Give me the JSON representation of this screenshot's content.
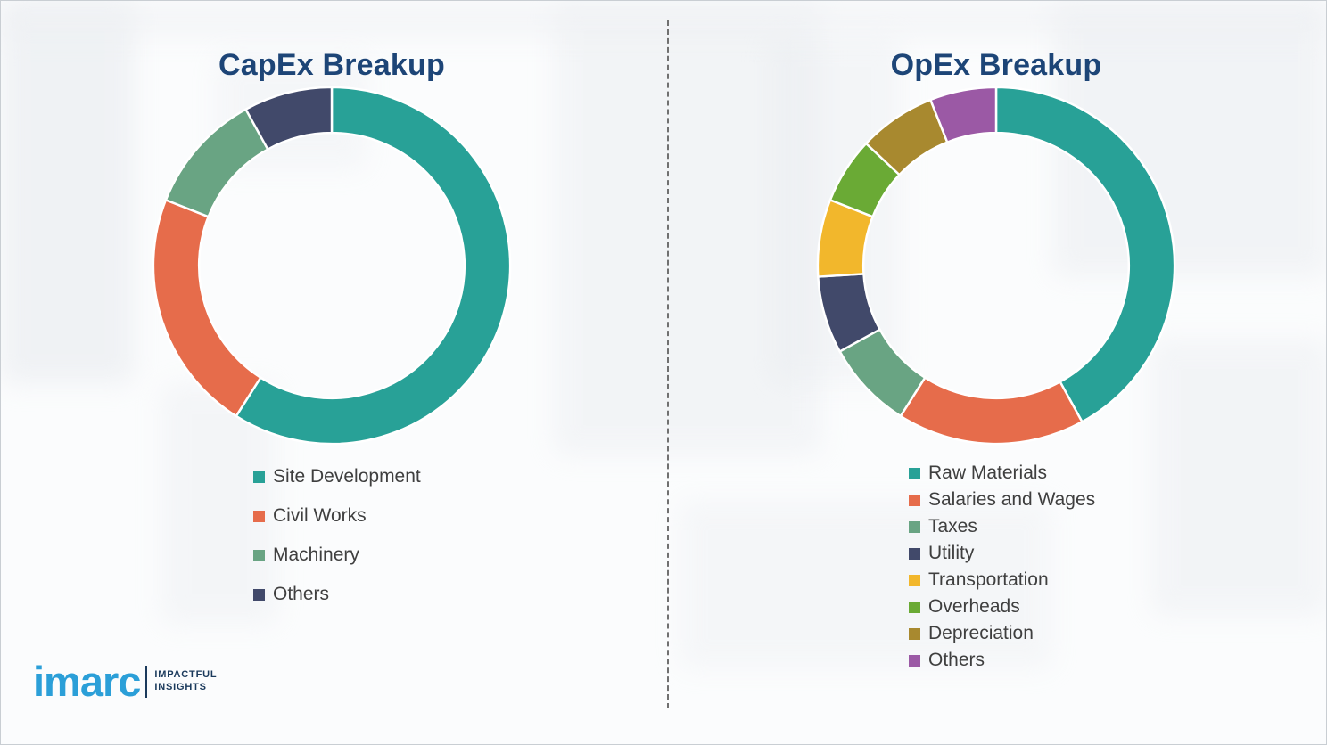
{
  "chart_data": [
    {
      "type": "pie",
      "variant": "donut",
      "title": "CapEx Breakup",
      "legend_position": "bottom-left",
      "segments": [
        {
          "label": "Site Development",
          "value": 59,
          "color": "#28A197"
        },
        {
          "label": "Civil Works",
          "value": 22,
          "color": "#E66C4B"
        },
        {
          "label": "Machinery",
          "value": 11,
          "color": "#69A483"
        },
        {
          "label": "Others",
          "value": 8,
          "color": "#41496A"
        }
      ]
    },
    {
      "type": "pie",
      "variant": "donut",
      "title": "OpEx Breakup",
      "legend_position": "bottom-left",
      "segments": [
        {
          "label": "Raw Materials",
          "value": 42,
          "color": "#28A197"
        },
        {
          "label": "Salaries and Wages",
          "value": 17,
          "color": "#E66C4B"
        },
        {
          "label": "Taxes",
          "value": 8,
          "color": "#69A483"
        },
        {
          "label": "Utility",
          "value": 7,
          "color": "#41496A"
        },
        {
          "label": "Transportation",
          "value": 7,
          "color": "#F2B72C"
        },
        {
          "label": "Overheads",
          "value": 6,
          "color": "#6AAA35"
        },
        {
          "label": "Depreciation",
          "value": 7,
          "color": "#A8892F"
        },
        {
          "label": "Others",
          "value": 6,
          "color": "#9B59A5"
        }
      ]
    }
  ],
  "logo": {
    "brand": "imarc",
    "tagline_line1": "IMPACTFUL",
    "tagline_line2": "INSIGHTS",
    "brand_color": "#2B9FD8",
    "tagline_color": "#1B3A5C"
  },
  "theme": {
    "title_color": "#1D4577",
    "legend_text_color": "#3F3F3F",
    "divider_color": "#707070",
    "segment_gap_color": "#FFFFFF"
  }
}
